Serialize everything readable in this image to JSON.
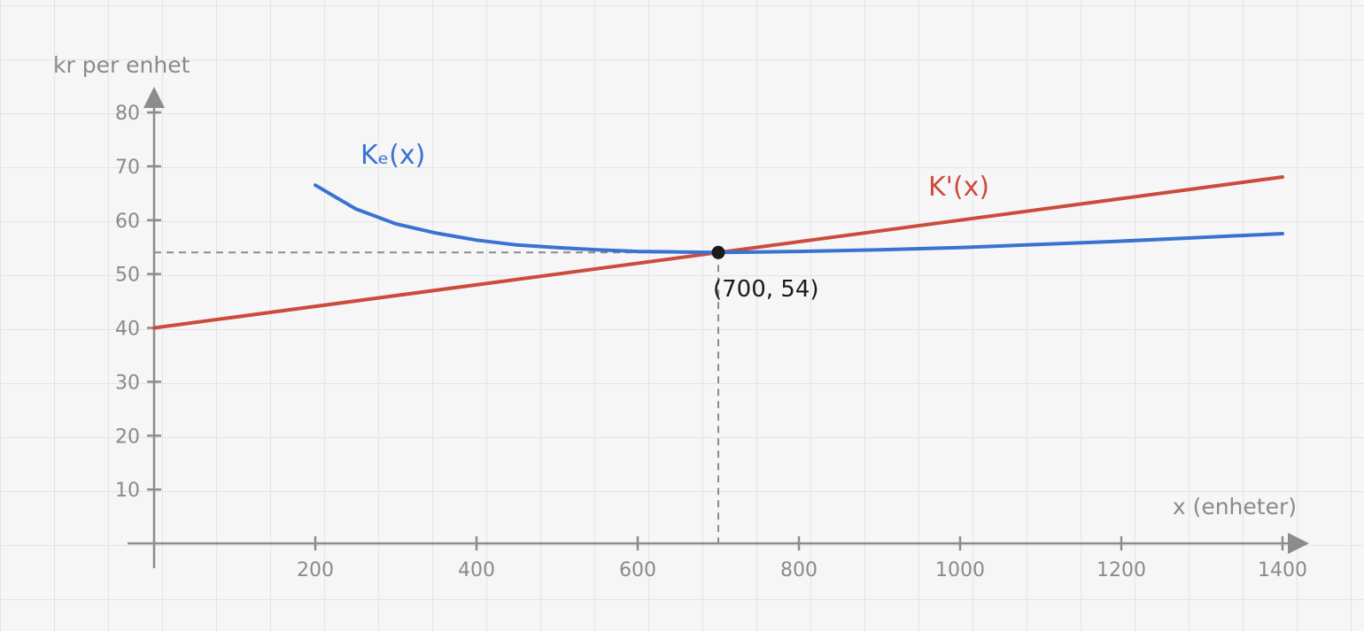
{
  "chart_data": {
    "type": "line",
    "xlabel": "x (enheter)",
    "ylabel": "kr per enhet",
    "xlim": [
      0,
      1400
    ],
    "ylim": [
      0,
      80
    ],
    "xticks": [
      200,
      400,
      600,
      800,
      1000,
      1200,
      1400
    ],
    "yticks": [
      10,
      20,
      30,
      40,
      50,
      60,
      70,
      80
    ],
    "grid": true,
    "series": [
      {
        "name": "Kₑ(x)",
        "color": "#3a72d0",
        "x": [
          200,
          250,
          300,
          350,
          400,
          450,
          500,
          550,
          600,
          650,
          700,
          750,
          800,
          900,
          1000,
          1100,
          1200,
          1300,
          1400
        ],
        "values": [
          66.5,
          62.1,
          59.3,
          57.6,
          56.3,
          55.4,
          54.9,
          54.5,
          54.2,
          54.1,
          54.0,
          54.1,
          54.2,
          54.5,
          54.9,
          55.5,
          56.1,
          56.8,
          57.5
        ]
      },
      {
        "name": "K'(x)",
        "color": "#cc4b3f",
        "x": [
          0,
          700,
          1400
        ],
        "values": [
          40,
          54,
          68
        ]
      }
    ],
    "annotations": [
      {
        "label": "(700, 54)",
        "x": 700,
        "y": 54
      }
    ]
  }
}
